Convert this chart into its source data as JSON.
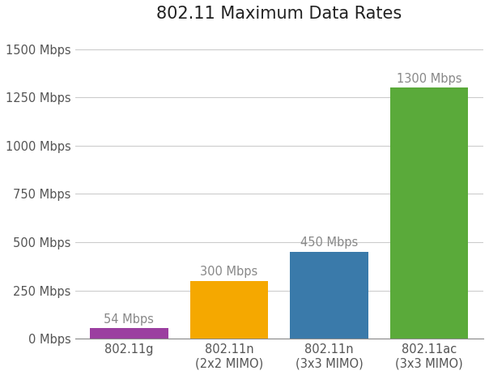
{
  "title": "802.11 Maximum Data Rates",
  "categories": [
    "802.11g",
    "802.11n\n(2x2 MIMO)",
    "802.11n\n(3x3 MIMO)",
    "802.11ac\n(3x3 MIMO)"
  ],
  "values": [
    54,
    300,
    450,
    1300
  ],
  "bar_colors": [
    "#9b3fa0",
    "#f5a800",
    "#3a7aaa",
    "#5aaa3a"
  ],
  "annotations": [
    "54 Mbps",
    "300 Mbps",
    "450 Mbps",
    "1300 Mbps"
  ],
  "ylim": [
    0,
    1600
  ],
  "yticks": [
    0,
    250,
    500,
    750,
    1000,
    1250,
    1500
  ],
  "ytick_labels": [
    "0 Mbps",
    "250 Mbps",
    "500 Mbps",
    "750 Mbps",
    "1000 Mbps",
    "1250 Mbps",
    "1500 Mbps"
  ],
  "annotation_color": "#888888",
  "annotation_fontsize": 10.5,
  "title_fontsize": 15,
  "tick_fontsize": 10.5,
  "background_color": "#ffffff",
  "grid_color": "#cccccc",
  "bar_width": 0.78
}
